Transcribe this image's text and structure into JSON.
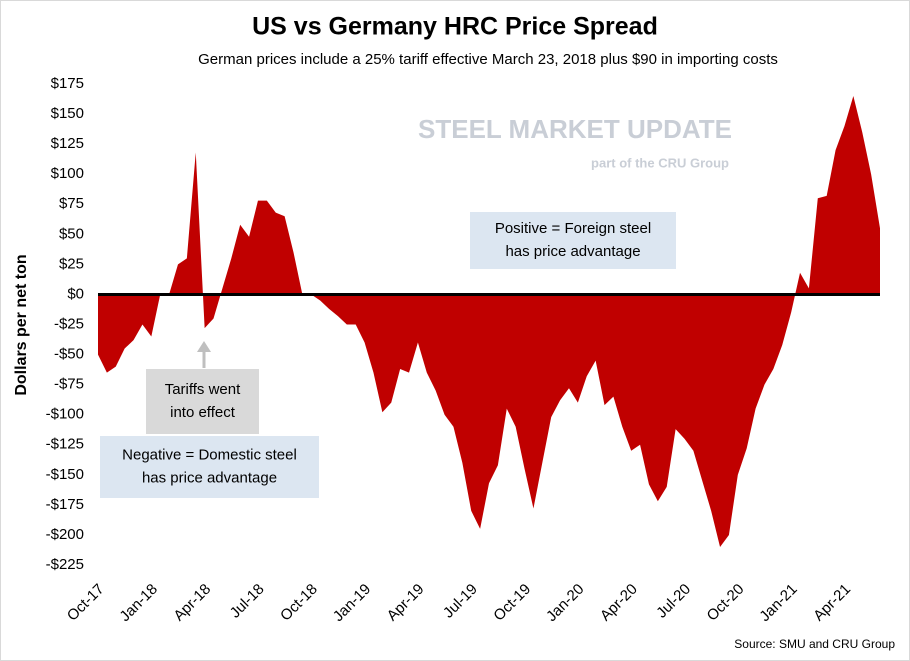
{
  "chart_data": {
    "type": "area",
    "title": "US vs Germany HRC Price Spread",
    "subtitle": "German prices include a 25% tariff effective March 23, 2018 plus $90 in importing costs",
    "y_label": "Dollars per net ton",
    "source": "Source: SMU and CRU Group",
    "logo": {
      "name": "STEEL MARKET UPDATE",
      "tagline": "part of the CRU Group"
    },
    "annotations": [
      {
        "lines": [
          "Positive = Foreign steel",
          "has price advantage"
        ]
      },
      {
        "lines": [
          "Negative = Domestic steel",
          "has price advantage"
        ]
      },
      {
        "lines": [
          "Tariffs went",
          "into effect"
        ]
      }
    ],
    "color": "#c00000",
    "categories": [
      "Oct-17",
      null,
      null,
      null,
      null,
      null,
      "Jan-18",
      null,
      null,
      null,
      null,
      null,
      "Apr-18",
      null,
      null,
      null,
      null,
      null,
      "Jul-18",
      null,
      null,
      null,
      null,
      null,
      "Oct-18",
      null,
      null,
      null,
      null,
      null,
      "Jan-19",
      null,
      null,
      null,
      null,
      null,
      "Apr-19",
      null,
      null,
      null,
      null,
      null,
      "Jul-19",
      null,
      null,
      null,
      null,
      null,
      "Oct-19",
      null,
      null,
      null,
      null,
      null,
      "Jan-20",
      null,
      null,
      null,
      null,
      null,
      "Apr-20",
      null,
      null,
      null,
      null,
      null,
      "Jul-20",
      null,
      null,
      null,
      null,
      null,
      "Oct-20",
      null,
      null,
      null,
      null,
      null,
      "Jan-21",
      null,
      null,
      null,
      null,
      null,
      "Apr-21",
      null,
      null,
      null,
      null
    ],
    "values": [
      -50,
      -65,
      -60,
      -45,
      -38,
      -25,
      -35,
      0,
      0,
      25,
      30,
      118,
      -28,
      -20,
      5,
      30,
      58,
      48,
      78,
      78,
      68,
      65,
      35,
      0,
      0,
      -5,
      -12,
      -18,
      -25,
      -25,
      -40,
      -65,
      -98,
      -90,
      -62,
      -65,
      -40,
      -65,
      -80,
      -100,
      -110,
      -140,
      -180,
      -195,
      -157,
      -142,
      -95,
      -110,
      -145,
      -178,
      -140,
      -102,
      -88,
      -78,
      -90,
      -68,
      -55,
      -92,
      -85,
      -110,
      -130,
      -125,
      -158,
      -172,
      -160,
      -112,
      -120,
      -130,
      -155,
      -180,
      -210,
      -200,
      -150,
      -128,
      -95,
      -75,
      -62,
      -42,
      -15,
      18,
      5,
      80,
      82,
      120,
      140,
      165,
      135,
      100,
      55
    ],
    "ylim": [
      -225,
      175
    ],
    "yticks": [
      {
        "value": -225,
        "label": "-$225"
      },
      {
        "value": -200,
        "label": "-$200"
      },
      {
        "value": -175,
        "label": "-$175"
      },
      {
        "value": -150,
        "label": "-$150"
      },
      {
        "value": -125,
        "label": "-$125"
      },
      {
        "value": -100,
        "label": "-$100"
      },
      {
        "value": -75,
        "label": "-$75"
      },
      {
        "value": -50,
        "label": "-$50"
      },
      {
        "value": -25,
        "label": "-$25"
      },
      {
        "value": 0,
        "label": "$0"
      },
      {
        "value": 25,
        "label": "$25"
      },
      {
        "value": 50,
        "label": "$50"
      },
      {
        "value": 75,
        "label": "$75"
      },
      {
        "value": 100,
        "label": "$100"
      },
      {
        "value": 125,
        "label": "$125"
      },
      {
        "value": 150,
        "label": "$150"
      },
      {
        "value": 175,
        "label": "$175"
      }
    ],
    "grid": false
  }
}
